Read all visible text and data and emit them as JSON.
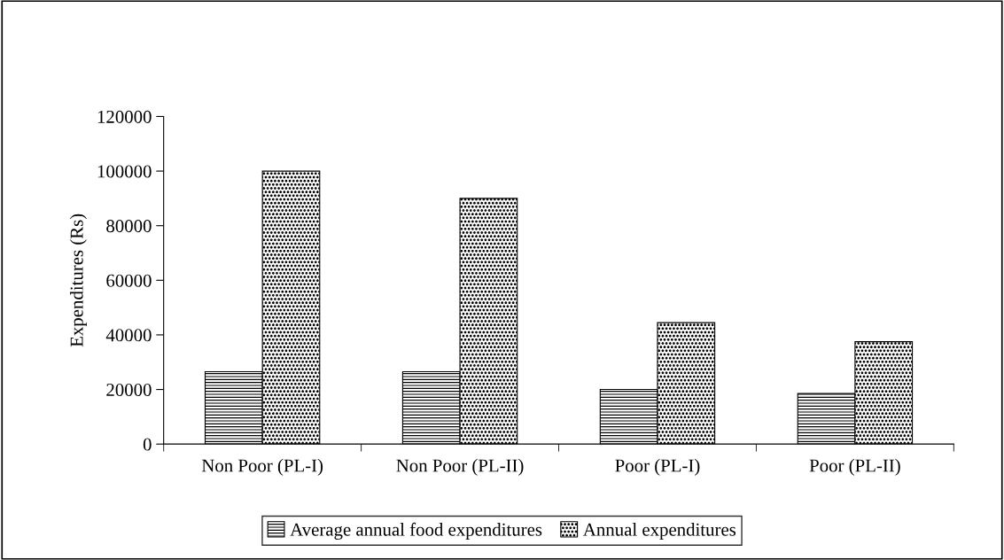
{
  "chart_data": {
    "type": "bar",
    "ylabel": "Expenditures (Rs)",
    "categories": [
      "Non Poor (PL-I)",
      "Non Poor (PL-II)",
      "Poor (PL-I)",
      "Poor (PL-II)"
    ],
    "series": [
      {
        "name": "Average annual food expenditures",
        "color": "#000000",
        "values": [
          26500,
          26500,
          20000,
          18500
        ]
      },
      {
        "name": "Annual expenditures",
        "color": "#000000",
        "values": [
          100000,
          90000,
          44500,
          37500
        ]
      }
    ],
    "ylim": [
      0,
      120000
    ],
    "yticks": [
      0,
      20000,
      40000,
      60000,
      80000,
      100000,
      120000
    ],
    "grid": false,
    "legend": "bottom"
  }
}
